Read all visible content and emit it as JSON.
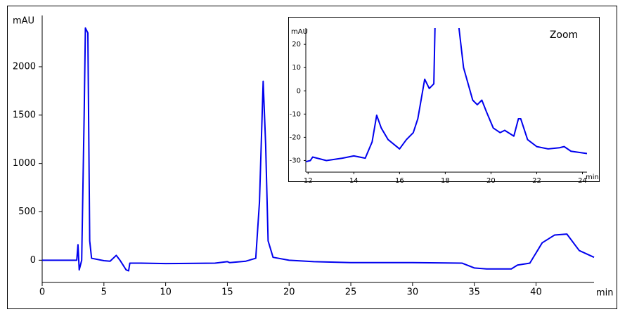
{
  "chart_data": [
    {
      "type": "line",
      "y_label": "mAU",
      "x_label": "min",
      "x": [
        0,
        2.8,
        2.9,
        3.0,
        3.2,
        3.4,
        3.5,
        3.7,
        3.85,
        4,
        5,
        5.5,
        6,
        6.3,
        6.8,
        7,
        7.1,
        8,
        10,
        14,
        15,
        15.2,
        16.5,
        17.3,
        17.6,
        17.9,
        18.1,
        18.3,
        18.7,
        20,
        22,
        25,
        30,
        34,
        35,
        36,
        38,
        38.5,
        39.5,
        40.5,
        41.5,
        42.5,
        43.5,
        44.7
      ],
      "series": [
        {
          "color": "#0000ee",
          "values": [
            0,
            0,
            160,
            -100,
            0,
            1500,
            2400,
            2350,
            200,
            20,
            -5,
            -10,
            50,
            0,
            -100,
            -110,
            -30,
            -30,
            -35,
            -30,
            -15,
            -25,
            -10,
            20,
            600,
            1850,
            1200,
            200,
            30,
            0,
            -15,
            -25,
            -25,
            -30,
            -80,
            -90,
            -90,
            -50,
            -30,
            180,
            260,
            270,
            100,
            30
          ]
        }
      ],
      "xlim": [
        0,
        44.7
      ],
      "ylim": [
        -230,
        2530
      ],
      "xticks": [
        0,
        5,
        10,
        15,
        20,
        25,
        30,
        35,
        40
      ],
      "yticks": [
        0,
        500,
        1000,
        1500,
        2000
      ]
    },
    {
      "type": "line",
      "title": "Zoom",
      "y_label": "mAU",
      "x_label": "min",
      "x": [
        11.9,
        12.1,
        12.2,
        12.8,
        13.5,
        14,
        14.5,
        14.8,
        15,
        15.2,
        15.5,
        16,
        16.3,
        16.6,
        16.8,
        17.1,
        17.3,
        17.5,
        17.55,
        18.0,
        18.6,
        18.8,
        19.2,
        19.4,
        19.6,
        19.8,
        20.1,
        20.4,
        20.6,
        21,
        21.2,
        21.3,
        21.6,
        22,
        22.5,
        23,
        23.2,
        23.5,
        24.2
      ],
      "series": [
        {
          "color": "#0000ee",
          "values": [
            -30.5,
            -30,
            -28.5,
            -30,
            -29,
            -28,
            -29,
            -22,
            -10.5,
            -16,
            -21,
            -25,
            -21,
            -18,
            -12,
            5,
            1,
            3,
            27,
            null,
            27,
            10,
            -4,
            -6,
            -4,
            -9,
            -16,
            -18,
            -17,
            -19.5,
            -12,
            -12,
            -21,
            -24,
            -25,
            -24.5,
            -24,
            -26,
            -27
          ]
        }
      ],
      "xlim": [
        11.9,
        24.2
      ],
      "ylim": [
        -35,
        27
      ],
      "xticks": [
        12,
        14,
        16,
        18,
        20,
        22,
        24
      ],
      "yticks": [
        -30,
        -20,
        -10,
        0,
        10,
        20
      ]
    }
  ]
}
